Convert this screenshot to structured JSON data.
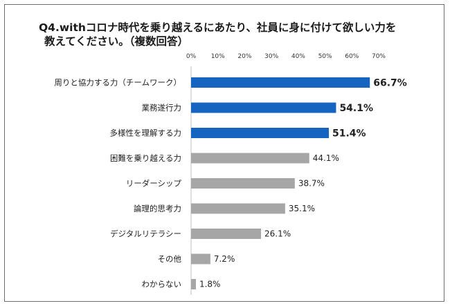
{
  "title_line1": "Q4.withコロナ時代を乗り越えるにあたり、社員に身に付けて欲しい力を",
  "title_line2": "教えてください。（複数回答）",
  "colors": {
    "highlight": "#1565c0",
    "normal": "#a6a6a6"
  },
  "chart_data": {
    "type": "bar",
    "orientation": "horizontal",
    "title": "Q4.withコロナ時代を乗り越えるにあたり、社員に身に付けて欲しい力を教えてください。（複数回答）",
    "xlim": [
      0,
      70
    ],
    "x_ticks": [
      "0%",
      "10%",
      "20%",
      "30%",
      "40%",
      "50%",
      "60%",
      "70%"
    ],
    "categories": [
      "周りと協力する力（チームワーク）",
      "業務遂行力",
      "多様性を理解する力",
      "困難を乗り越える力",
      "リーダーシップ",
      "論理的思考力",
      "デジタルリテラシー",
      "その他",
      "わからない"
    ],
    "values": [
      66.7,
      54.1,
      51.4,
      44.1,
      38.7,
      35.1,
      26.1,
      7.2,
      1.8
    ],
    "value_labels": [
      "66.7%",
      "54.1%",
      "51.4%",
      "44.1%",
      "38.7%",
      "35.1%",
      "26.1%",
      "7.2%",
      "1.8%"
    ],
    "highlighted": [
      true,
      true,
      true,
      false,
      false,
      false,
      false,
      false,
      false
    ],
    "grid": false,
    "legend": "none"
  }
}
